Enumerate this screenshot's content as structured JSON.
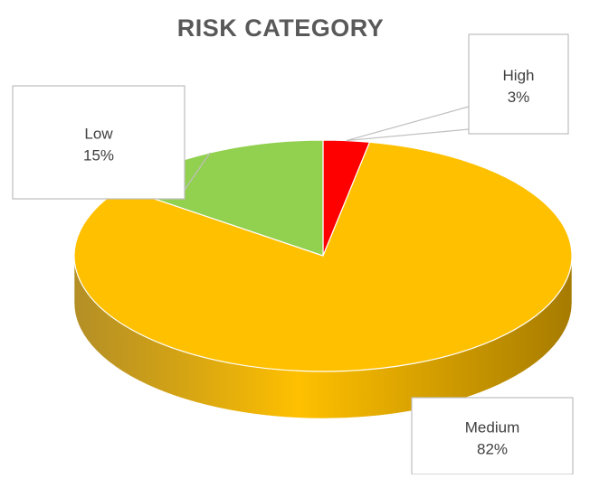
{
  "chart_data": {
    "type": "pie",
    "title": "RISK CATEGORY",
    "three_d": true,
    "slices": [
      {
        "label": "High",
        "value": 3,
        "value_label": "3%",
        "color": "#ff0000",
        "side_color": "#a00000"
      },
      {
        "label": "Medium",
        "value": 82,
        "value_label": "82%",
        "color": "#ffc000",
        "side_color": "#a67b00"
      },
      {
        "label": "Low",
        "value": 15,
        "value_label": "15%",
        "color": "#92d050",
        "side_color": "#5f8a33"
      }
    ],
    "start_angle_deg": 0,
    "direction": "clockwise",
    "legend": "none",
    "data_labels": "callouts"
  }
}
